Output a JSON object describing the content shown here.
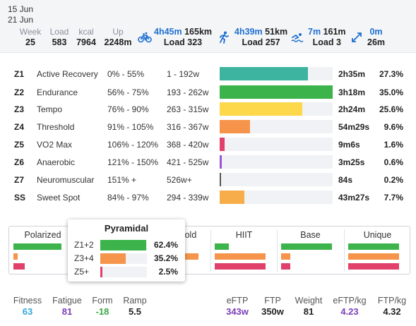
{
  "header": {
    "date_start": "15 Jun",
    "date_end": "21 Jun",
    "stats": [
      {
        "label": "Week",
        "value": "25"
      },
      {
        "label": "Load",
        "value": "583"
      },
      {
        "label": "kcal",
        "value": "7964"
      },
      {
        "label": "Up",
        "value": "2248m"
      }
    ],
    "sports": [
      {
        "icon": "bike-icon",
        "time": "4h45m",
        "distance": "165km",
        "load": "Load 323"
      },
      {
        "icon": "run-icon",
        "time": "4h39m",
        "distance": "51km",
        "load": "Load 257"
      },
      {
        "icon": "swim-icon",
        "time": "7m",
        "distance": "161m",
        "load": "Load 3"
      },
      {
        "icon": "other-icon",
        "time": "0m",
        "distance": "26m",
        "load": ""
      }
    ]
  },
  "zones": [
    {
      "id": "Z1",
      "name": "Active Recovery",
      "pct": "0% - 55%",
      "watts": "1 - 192w",
      "time": "2h35m",
      "share": "27.3%",
      "fill": 0.78,
      "color": "#3cb4a0"
    },
    {
      "id": "Z2",
      "name": "Endurance",
      "pct": "56% - 75%",
      "watts": "193 - 262w",
      "time": "3h18m",
      "share": "35.0%",
      "fill": 1.0,
      "color": "#3cb44b"
    },
    {
      "id": "Z3",
      "name": "Tempo",
      "pct": "76% - 90%",
      "watts": "263 - 315w",
      "time": "2h24m",
      "share": "25.6%",
      "fill": 0.73,
      "color": "#fcd84a"
    },
    {
      "id": "Z4",
      "name": "Threshold",
      "pct": "91% - 105%",
      "watts": "316 - 367w",
      "time": "54m29s",
      "share": "9.6%",
      "fill": 0.27,
      "color": "#f5944a"
    },
    {
      "id": "Z5",
      "name": "VO2 Max",
      "pct": "106% - 120%",
      "watts": "368 - 420w",
      "time": "9m6s",
      "share": "1.6%",
      "fill": 0.045,
      "color": "#e0406a"
    },
    {
      "id": "Z6",
      "name": "Anaerobic",
      "pct": "121% - 150%",
      "watts": "421 - 525w",
      "time": "3m25s",
      "share": "0.6%",
      "fill": 0.018,
      "color": "#9a55d6"
    },
    {
      "id": "Z7",
      "name": "Neuromuscular",
      "pct": "151% +",
      "watts": "526w+",
      "time": "84s",
      "share": "0.2%",
      "fill": 0.006,
      "color": "#555555"
    },
    {
      "id": "SS",
      "name": "Sweet Spot",
      "pct": "84% - 97%",
      "watts": "294 - 339w",
      "time": "43m27s",
      "share": "7.7%",
      "fill": 0.22,
      "color": "#f7ad4a"
    }
  ],
  "polarization": {
    "columns": [
      {
        "title": "Polarized",
        "bars": [
          0.95,
          0.08,
          0.22
        ]
      },
      {
        "title": "Pyramidal",
        "bars": [
          0.62,
          0.35,
          0.03
        ]
      },
      {
        "title": "Threshold",
        "bars": [
          0.6,
          1.0,
          0.15
        ]
      },
      {
        "title": "HIIT",
        "bars": [
          0.28,
          1.0,
          1.0
        ]
      },
      {
        "title": "Base",
        "bars": [
          1.0,
          0.18,
          0.18
        ]
      },
      {
        "title": "Unique",
        "bars": [
          1.0,
          1.0,
          1.0
        ]
      }
    ],
    "colors": [
      "#3cb44b",
      "#f5944a",
      "#e0406a"
    ]
  },
  "popup": {
    "title": "Pyramidal",
    "rows": [
      {
        "label": "Z1+2",
        "value": "62.4%",
        "fill": 0.98,
        "color": "#3cb44b"
      },
      {
        "label": "Z3+4",
        "value": "35.2%",
        "fill": 0.55,
        "color": "#f5944a"
      },
      {
        "label": "Z5+",
        "value": "2.5%",
        "fill": 0.04,
        "color": "#e0406a"
      }
    ]
  },
  "footer": {
    "fitness": {
      "label": "Fitness",
      "value": "63",
      "color": "#33a8d8"
    },
    "fatigue": {
      "label": "Fatigue",
      "value": "81",
      "color": "#7b3fb8"
    },
    "form": {
      "label": "Form",
      "value": "-18",
      "color": "#3aa845"
    },
    "ramp": {
      "label": "Ramp",
      "value": "5.5",
      "color": "#222222"
    },
    "eftp": {
      "label": "eFTP",
      "value": "343w",
      "color": "#7b3fb8"
    },
    "ftp": {
      "label": "FTP",
      "value": "350w",
      "color": "#222222"
    },
    "weight": {
      "label": "Weight",
      "value": "81",
      "color": "#222222"
    },
    "eftp_kg": {
      "label": "eFTP/kg",
      "value": "4.23",
      "color": "#7b3fb8"
    },
    "ftp_kg": {
      "label": "FTP/kg",
      "value": "4.32",
      "color": "#222222"
    }
  }
}
